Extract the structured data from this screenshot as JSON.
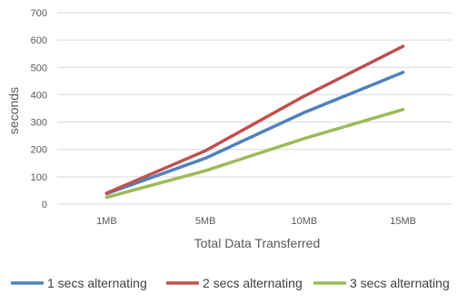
{
  "chart_data": {
    "type": "line",
    "title": "",
    "xlabel": "Total Data Transferred",
    "ylabel": "seconds",
    "categories": [
      "1MB",
      "5MB",
      "10MB",
      "15MB"
    ],
    "ylim": [
      0,
      700
    ],
    "yticks": [
      0,
      100,
      200,
      300,
      400,
      500,
      600,
      700
    ],
    "grid": "horizontal",
    "legend_position": "bottom",
    "series": [
      {
        "name": "1 secs alternating",
        "color": "#4F81BD",
        "values": [
          38,
          168,
          335,
          482
        ]
      },
      {
        "name": "2 secs alternating",
        "color": "#C0504D",
        "values": [
          40,
          195,
          395,
          577
        ]
      },
      {
        "name": "3 secs alternating",
        "color": "#9BBB59",
        "values": [
          25,
          122,
          240,
          346
        ]
      }
    ]
  }
}
